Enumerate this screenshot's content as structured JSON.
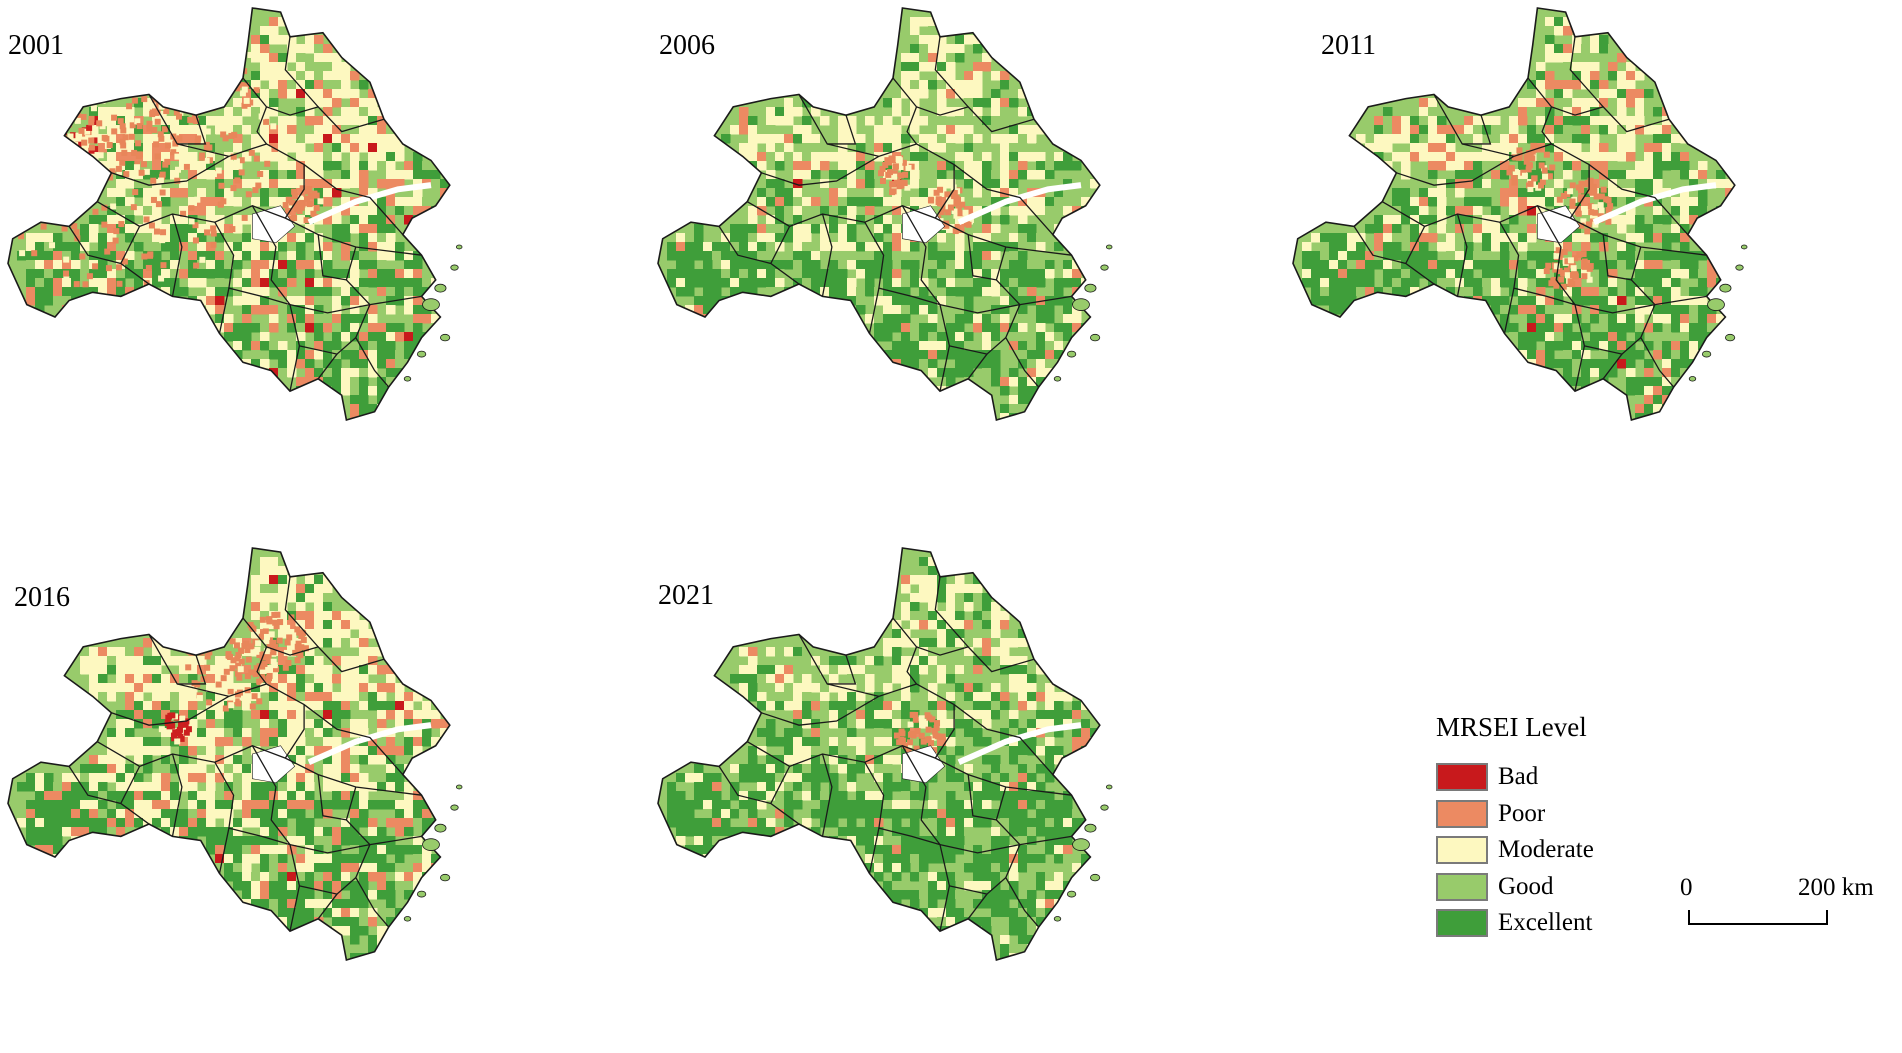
{
  "panels": [
    {
      "year": "2001",
      "hot": [
        [
          0.22,
          0.3,
          0.34,
          "#e8865a"
        ],
        [
          0.13,
          0.34,
          0.07,
          "#cc1f1f"
        ],
        [
          0.3,
          0.2,
          0.2,
          "#e8865a"
        ],
        [
          0.62,
          0.47,
          0.04,
          "#e8865a"
        ]
      ],
      "mix": "bad"
    },
    {
      "year": "2006",
      "hot": [
        [
          0.62,
          0.48,
          0.05,
          "#e8865a"
        ],
        [
          0.5,
          0.4,
          0.04,
          "#e8865a"
        ]
      ],
      "mix": "good"
    },
    {
      "year": "2011",
      "hot": [
        [
          0.62,
          0.47,
          0.06,
          "#e8865a"
        ],
        [
          0.5,
          0.38,
          0.05,
          "#e8865a"
        ],
        [
          0.58,
          0.63,
          0.05,
          "#e8865a"
        ]
      ],
      "mix": "mid"
    },
    {
      "year": "2016",
      "hot": [
        [
          0.47,
          0.28,
          0.1,
          "#e8865a"
        ],
        [
          0.57,
          0.22,
          0.06,
          "#e8865a"
        ],
        [
          0.35,
          0.43,
          0.03,
          "#cc1f1f"
        ]
      ],
      "mix": "mod"
    },
    {
      "year": "2021",
      "hot": [
        [
          0.55,
          0.45,
          0.05,
          "#e8865a"
        ]
      ],
      "mix": "best"
    }
  ],
  "legend": {
    "title": "MRSEI Level",
    "items": [
      {
        "label": "Bad",
        "color": "#c8191c"
      },
      {
        "label": "Poor",
        "color": "#ec8a62"
      },
      {
        "label": "Moderate",
        "color": "#fdf8c0"
      },
      {
        "label": "Good",
        "color": "#98cb6b"
      },
      {
        "label": "Excellent",
        "color": "#3f9e3a"
      }
    ]
  },
  "scale": {
    "zero": "0",
    "max": "200 km"
  },
  "colors": {
    "bad": "#c8191c",
    "poor": "#ec8a62",
    "moderate": "#fdf8c0",
    "good": "#98cb6b",
    "excellent": "#3f9e3a",
    "boundary": "#1a1a1a",
    "water": "#ffffff"
  }
}
